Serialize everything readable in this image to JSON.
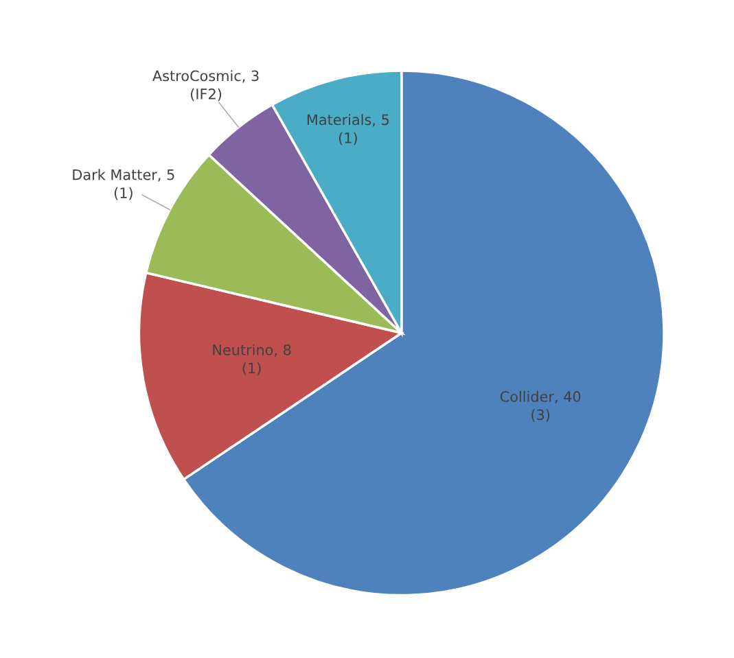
{
  "chart_data": {
    "type": "pie",
    "categories": [
      "Collider, 40\n(3)",
      "Neutrino, 8\n(1)",
      "Dark Matter, 5\n(1)",
      "AstroCosmic, 3\n(IF2)",
      "Materials, 5\n(1)"
    ],
    "values": [
      40,
      8,
      5,
      3,
      5
    ],
    "colors": [
      "#4f81bd",
      "#c0504d",
      "#9bbb59",
      "#8064a2",
      "#4bacc6"
    ],
    "legend": false
  }
}
